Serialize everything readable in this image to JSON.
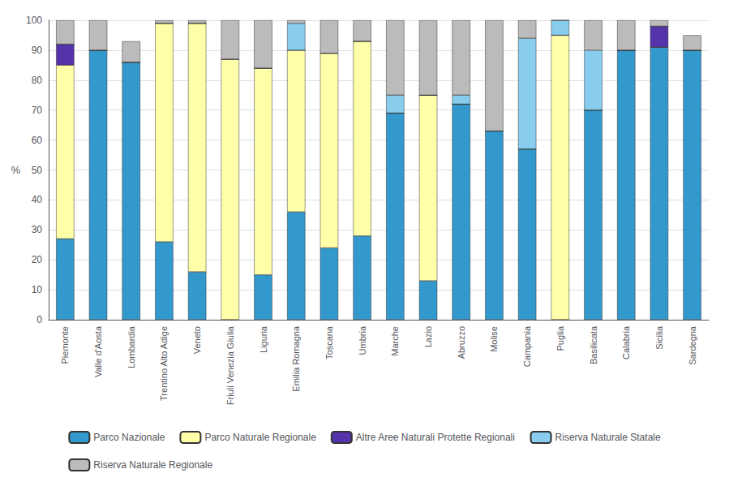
{
  "chart_data": {
    "type": "bar",
    "ylabel": "%",
    "categories": [
      "Piemonte",
      "Valle d'Aosta",
      "Lombardia",
      "Trentino Alto Adige",
      "Veneto",
      "Friuli Venezia Giulia",
      "Liguria",
      "Emilia Romagna",
      "Toscana",
      "Umbria",
      "Marche",
      "Lazio",
      "Abruzzo",
      "Molise",
      "Campania",
      "Puglia",
      "Basilicata",
      "Calabria",
      "Sicilia",
      "Sardegna"
    ],
    "series": [
      {
        "name": "Parco Nazionale",
        "color": "#3399CC",
        "values": [
          27,
          90,
          86,
          26,
          16,
          0,
          15,
          36,
          24,
          28,
          69,
          13,
          72,
          63,
          57,
          0,
          70,
          90,
          91,
          90
        ]
      },
      {
        "name": "Parco Naturale Regionale",
        "color": "#FFFFAA",
        "values": [
          58,
          0,
          0,
          73,
          83,
          87,
          69,
          54,
          65,
          65,
          0,
          62,
          0,
          0,
          0,
          95,
          0,
          0,
          0,
          0
        ]
      },
      {
        "name": "Altre Aree Naturali Protette Regionali",
        "color": "#5533AA",
        "values": [
          7,
          0,
          0,
          0,
          0,
          0,
          0,
          0,
          0,
          0,
          0,
          0,
          0,
          0,
          0,
          0,
          0,
          0,
          7,
          0
        ]
      },
      {
        "name": "Riserva Naturale Statale",
        "color": "#88CCEE",
        "values": [
          0,
          0,
          0,
          0,
          0,
          0,
          0,
          9,
          0,
          0,
          6,
          0,
          3,
          0,
          37,
          5,
          20,
          0,
          0,
          0
        ]
      },
      {
        "name": "Riserva Naturale Regionale",
        "color": "#BBBBBB",
        "values": [
          8,
          10,
          7,
          1,
          1,
          13,
          16,
          1,
          11,
          7,
          25,
          25,
          25,
          37,
          6,
          0,
          10,
          10,
          2,
          5
        ]
      }
    ],
    "stacked": true,
    "ylim": [
      0,
      100
    ],
    "yticks": [
      0,
      10,
      20,
      30,
      40,
      50,
      60,
      70,
      80,
      90,
      100
    ],
    "grid": true,
    "legend": "bottom"
  }
}
